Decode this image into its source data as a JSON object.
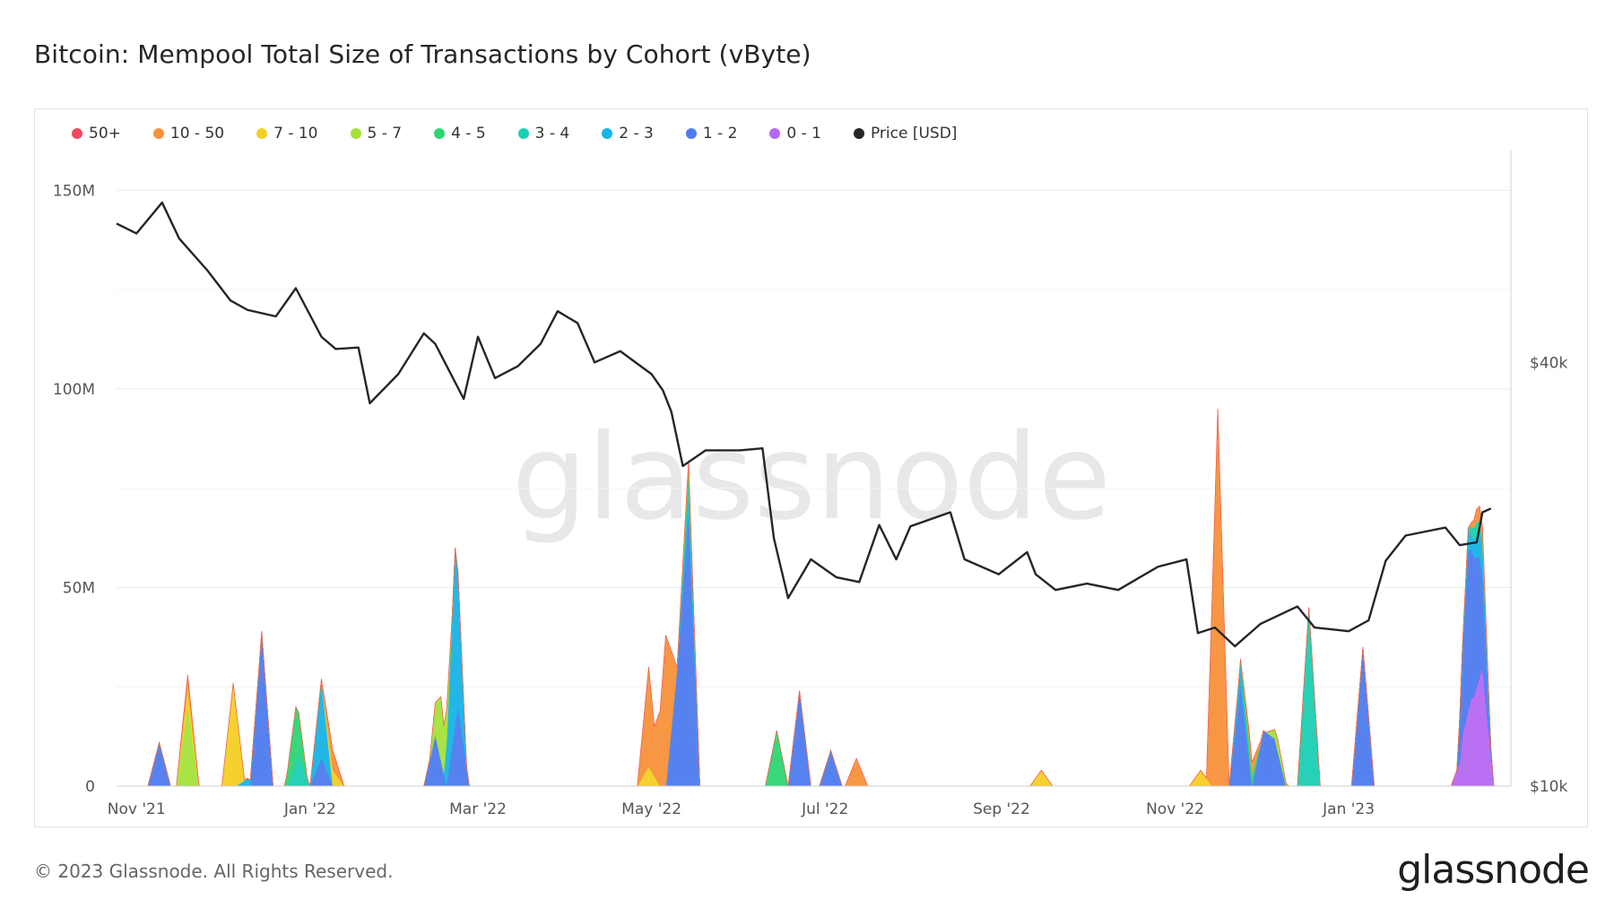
{
  "title": "Bitcoin: Mempool Total Size of Transactions by Cohort (vByte)",
  "footer": {
    "copyright": "© 2023 Glassnode. All Rights Reserved.",
    "logo": "glassnode"
  },
  "watermark": "glassnode",
  "legend": [
    {
      "label": "50+",
      "color": "#f2495c"
    },
    {
      "label": "10 - 50",
      "color": "#f7923a"
    },
    {
      "label": "7 - 10",
      "color": "#f5cf24"
    },
    {
      "label": "5 - 7",
      "color": "#a6e23a"
    },
    {
      "label": "4 - 5",
      "color": "#2ed573"
    },
    {
      "label": "3 - 4",
      "color": "#1ccfb4"
    },
    {
      "label": "2 - 3",
      "color": "#18b4e6"
    },
    {
      "label": "1 - 2",
      "color": "#4e7cf0"
    },
    {
      "label": "0 - 1",
      "color": "#b769f2"
    },
    {
      "label": "Price [USD]",
      "color": "#262626"
    }
  ],
  "chart_data": {
    "type": "area",
    "x_axis": {
      "type": "date",
      "start": "2021-10-25",
      "end": "2023-02-27",
      "tick_labels": [
        "Nov '21",
        "Jan '22",
        "Mar '22",
        "May '22",
        "Jul '22",
        "Sep '22",
        "Nov '22",
        "Jan '23"
      ],
      "tick_dates": [
        "2021-11-01",
        "2022-01-01",
        "2022-03-01",
        "2022-05-01",
        "2022-07-01",
        "2022-09-01",
        "2022-11-01",
        "2023-01-01"
      ]
    },
    "y_axis_left": {
      "label": "",
      "ylim": [
        0,
        160000000
      ],
      "ticks": [
        0,
        50000000,
        100000000,
        150000000
      ],
      "tick_labels": [
        "0",
        "50M",
        "100M",
        "150M"
      ]
    },
    "y_axis_right": {
      "label": "",
      "scale": "log",
      "ylim": [
        10000,
        80000
      ],
      "ticks": [
        10000,
        40000
      ],
      "tick_labels": [
        "$10k",
        "$40k"
      ]
    },
    "grid": true,
    "legend_position": "top-left",
    "price_series": {
      "name": "Price [USD]",
      "points": [
        [
          "2021-10-25",
          63000
        ],
        [
          "2021-11-01",
          61000
        ],
        [
          "2021-11-10",
          67500
        ],
        [
          "2021-11-16",
          60000
        ],
        [
          "2021-11-26",
          54000
        ],
        [
          "2021-12-04",
          49000
        ],
        [
          "2021-12-10",
          47500
        ],
        [
          "2021-12-20",
          46500
        ],
        [
          "2021-12-27",
          51000
        ],
        [
          "2022-01-05",
          43500
        ],
        [
          "2022-01-10",
          41800
        ],
        [
          "2022-01-18",
          42000
        ],
        [
          "2022-01-22",
          35000
        ],
        [
          "2022-02-01",
          38500
        ],
        [
          "2022-02-10",
          44000
        ],
        [
          "2022-02-14",
          42500
        ],
        [
          "2022-02-24",
          35500
        ],
        [
          "2022-03-01",
          43500
        ],
        [
          "2022-03-07",
          38000
        ],
        [
          "2022-03-15",
          39500
        ],
        [
          "2022-03-23",
          42500
        ],
        [
          "2022-03-29",
          47300
        ],
        [
          "2022-04-05",
          45500
        ],
        [
          "2022-04-11",
          40000
        ],
        [
          "2022-04-20",
          41500
        ],
        [
          "2022-05-01",
          38500
        ],
        [
          "2022-05-05",
          36500
        ],
        [
          "2022-05-08",
          34000
        ],
        [
          "2022-05-12",
          28500
        ],
        [
          "2022-05-20",
          30000
        ],
        [
          "2022-06-01",
          30000
        ],
        [
          "2022-06-09",
          30200
        ],
        [
          "2022-06-13",
          22500
        ],
        [
          "2022-06-18",
          18500
        ],
        [
          "2022-06-26",
          21000
        ],
        [
          "2022-07-05",
          19800
        ],
        [
          "2022-07-13",
          19500
        ],
        [
          "2022-07-20",
          23500
        ],
        [
          "2022-07-26",
          21000
        ],
        [
          "2022-07-31",
          23400
        ],
        [
          "2022-08-14",
          24500
        ],
        [
          "2022-08-19",
          21000
        ],
        [
          "2022-08-31",
          20000
        ],
        [
          "2022-09-10",
          21500
        ],
        [
          "2022-09-13",
          20000
        ],
        [
          "2022-09-20",
          19000
        ],
        [
          "2022-10-01",
          19400
        ],
        [
          "2022-10-12",
          19000
        ],
        [
          "2022-10-26",
          20500
        ],
        [
          "2022-11-05",
          21000
        ],
        [
          "2022-11-09",
          16500
        ],
        [
          "2022-11-15",
          16800
        ],
        [
          "2022-11-22",
          15800
        ],
        [
          "2022-12-01",
          17000
        ],
        [
          "2022-12-14",
          18000
        ],
        [
          "2022-12-20",
          16800
        ],
        [
          "2023-01-01",
          16600
        ],
        [
          "2023-01-08",
          17200
        ],
        [
          "2023-01-14",
          20900
        ],
        [
          "2023-01-21",
          22700
        ],
        [
          "2023-01-28",
          23000
        ],
        [
          "2023-02-04",
          23300
        ],
        [
          "2023-02-09",
          22000
        ],
        [
          "2023-02-15",
          22200
        ],
        [
          "2023-02-17",
          24500
        ],
        [
          "2023-02-20",
          24800
        ]
      ]
    },
    "series": [
      {
        "name": "0 - 1",
        "color": "#b769f2",
        "events": [
          [
            "2023-02-10",
            8000000
          ],
          [
            "2023-02-13",
            20000000
          ],
          [
            "2023-02-17",
            30000000
          ]
        ]
      },
      {
        "name": "1 - 2",
        "color": "#4e7cf0",
        "events": [
          [
            "2021-11-09",
            11000000
          ],
          [
            "2021-12-15",
            39000000
          ],
          [
            "2022-01-05",
            7000000
          ],
          [
            "2022-02-14",
            13000000
          ],
          [
            "2022-02-22",
            20000000
          ],
          [
            "2022-05-10",
            30000000
          ],
          [
            "2022-05-14",
            68000000
          ],
          [
            "2022-06-22",
            24000000
          ],
          [
            "2022-07-03",
            9000000
          ],
          [
            "2022-11-24",
            25000000
          ],
          [
            "2022-12-02",
            14000000
          ],
          [
            "2022-12-06",
            12000000
          ],
          [
            "2023-01-06",
            35000000
          ],
          [
            "2023-02-12",
            40000000
          ],
          [
            "2023-02-16",
            30000000
          ]
        ]
      },
      {
        "name": "2 - 3",
        "color": "#18b4e6",
        "events": [
          [
            "2021-12-10",
            2000000
          ],
          [
            "2022-01-05",
            20000000
          ],
          [
            "2022-02-21",
            45000000
          ],
          [
            "2022-05-14",
            5000000
          ],
          [
            "2022-11-24",
            6000000
          ],
          [
            "2023-02-12",
            5000000
          ],
          [
            "2023-02-17",
            8000000
          ]
        ]
      },
      {
        "name": "3 - 4",
        "color": "#1ccfb4",
        "events": [
          [
            "2021-12-28",
            8000000
          ],
          [
            "2022-05-14",
            4000000
          ],
          [
            "2022-12-18",
            45000000
          ],
          [
            "2023-02-15",
            4000000
          ]
        ]
      },
      {
        "name": "4 - 5",
        "color": "#2ed573",
        "events": [
          [
            "2021-12-27",
            14000000
          ],
          [
            "2022-06-14",
            14000000
          ],
          [
            "2022-05-14",
            3000000
          ],
          [
            "2022-11-27",
            4000000
          ]
        ]
      },
      {
        "name": "5 - 7",
        "color": "#a6e23a",
        "events": [
          [
            "2021-11-19",
            20000000
          ],
          [
            "2022-02-16",
            16000000
          ],
          [
            "2022-12-07",
            3000000
          ]
        ]
      },
      {
        "name": "7 - 10",
        "color": "#f5cf24",
        "events": [
          [
            "2021-12-05",
            26000000
          ],
          [
            "2021-11-19",
            5000000
          ],
          [
            "2022-01-09",
            4000000
          ],
          [
            "2022-04-30",
            5000000
          ],
          [
            "2022-09-15",
            4000000
          ],
          [
            "2022-11-10",
            4000000
          ]
        ]
      },
      {
        "name": "10 - 50",
        "color": "#f7923a",
        "events": [
          [
            "2021-11-19",
            3000000
          ],
          [
            "2022-01-09",
            5000000
          ],
          [
            "2022-04-30",
            25000000
          ],
          [
            "2022-05-06",
            38000000
          ],
          [
            "2022-05-14",
            2000000
          ],
          [
            "2022-07-12",
            7000000
          ],
          [
            "2022-11-16",
            95000000
          ],
          [
            "2022-11-28",
            3000000
          ],
          [
            "2023-02-16",
            4000000
          ]
        ]
      },
      {
        "name": "50+",
        "color": "#f2495c",
        "events": []
      }
    ]
  }
}
